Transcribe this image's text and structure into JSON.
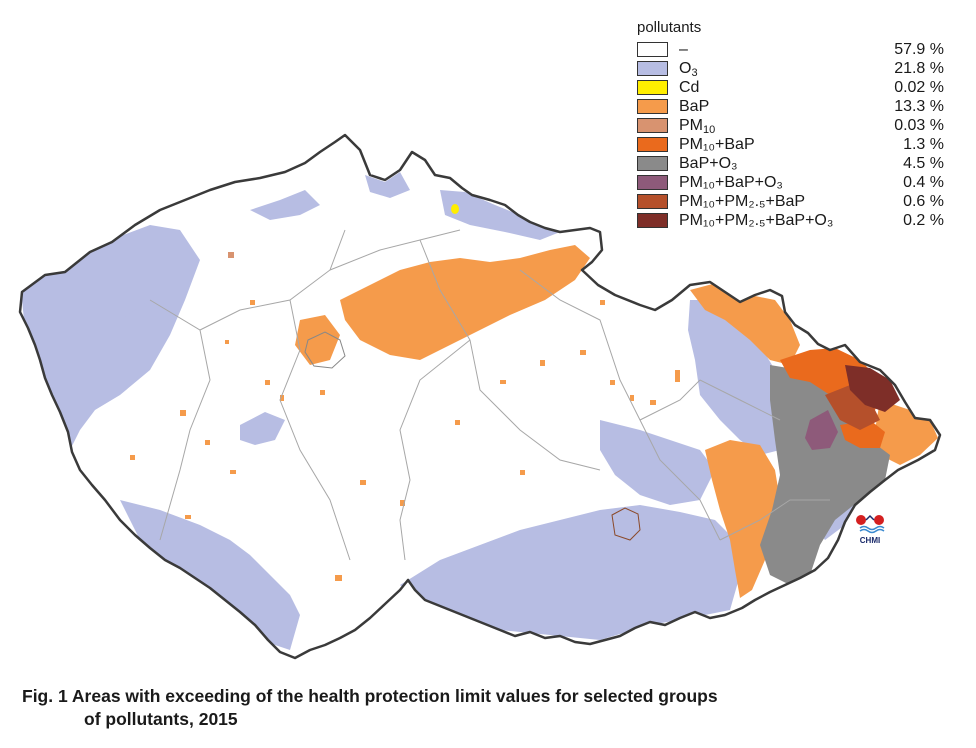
{
  "legend": {
    "title": "pollutants",
    "items": [
      {
        "label": "–",
        "label_sub": null,
        "percent": "57.9 %",
        "color": "#ffffff"
      },
      {
        "label": "O",
        "label_sub": "3",
        "percent": "21.8 %",
        "color": "#b7bde3"
      },
      {
        "label": "Cd",
        "label_sub": null,
        "percent": "0.02 %",
        "color": "#ffee00"
      },
      {
        "label": "BaP",
        "label_sub": null,
        "percent": "13.3 %",
        "color": "#f59b4b"
      },
      {
        "label": "PM",
        "label_sub": "10",
        "percent": "0.03 %",
        "color": "#d89370"
      },
      {
        "label": "PM₁₀+BaP",
        "label_sub": null,
        "percent": "1.3 %",
        "color": "#ea6a1d"
      },
      {
        "label": "BaP+O₃",
        "label_sub": null,
        "percent": "4.5 %",
        "color": "#8a8a8a"
      },
      {
        "label": "PM₁₀+BaP+O₃",
        "label_sub": null,
        "percent": "0.4 %",
        "color": "#8e5a7a"
      },
      {
        "label": "PM₁₀+PM₂.₅+BaP",
        "label_sub": null,
        "percent": "0.6 %",
        "color": "#b5502b"
      },
      {
        "label": "PM₁₀+PM₂.₅+BaP+O₃",
        "label_sub": null,
        "percent": "0.2 %",
        "color": "#7e2e28"
      }
    ]
  },
  "logo": {
    "text": "CHMI"
  },
  "caption": {
    "line1": "Fig. 1  Areas with exceeding of the health protection limit values for selected groups",
    "line2": "of pollutants, 2015"
  },
  "colors": {
    "border": "#3a3a3a",
    "regions": "#a7a7a7",
    "none": "#ffffff",
    "o3": "#b7bde3",
    "cd": "#ffee00",
    "bap": "#f59b4b",
    "pm10": "#d89370",
    "pm10_bap": "#ea6a1d",
    "bap_o3": "#8a8a8a",
    "pm10_bap_o3": "#8e5a7a",
    "pm10_pm25_bap": "#b5502b",
    "pm10_pm25_bap_o3": "#7e2e28"
  }
}
